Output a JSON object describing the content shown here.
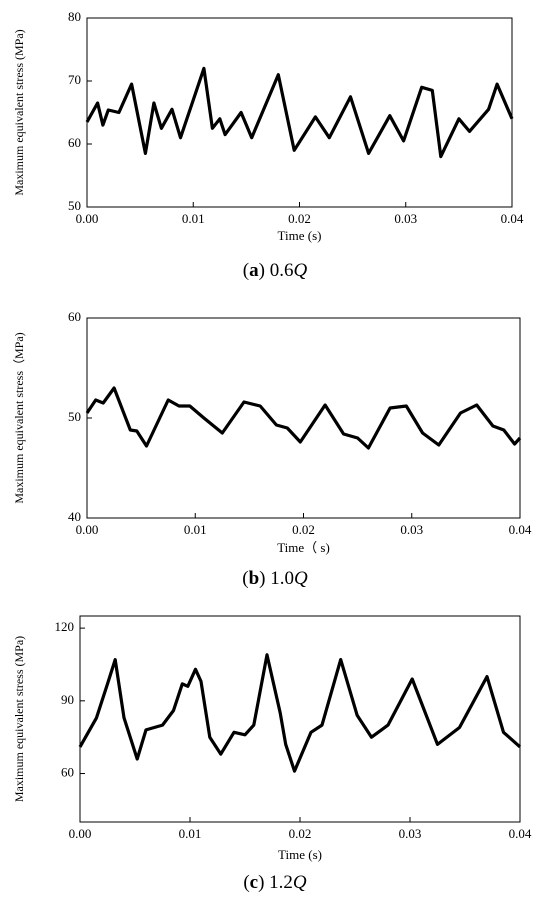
{
  "chart_data": [
    {
      "type": "line",
      "caption": [
        "(",
        "a",
        ") 0.6",
        "Q"
      ],
      "xlabel": "Time (s)",
      "ylabel": "Maximum equivalent stress (MPa)",
      "xlim": [
        0,
        0.04
      ],
      "xticks": [
        {
          "value": 0,
          "label": "0.00"
        },
        0.01,
        0.02,
        0.03,
        0.04
      ],
      "ylim": [
        50,
        80
      ],
      "yticks": [
        50,
        60,
        70,
        80
      ],
      "series": [
        {
          "color": "#000000",
          "x": [
            0,
            0.001,
            0.0015,
            0.002,
            0.003,
            0.0042,
            0.0055,
            0.0063,
            0.007,
            0.008,
            0.0088,
            0.01,
            0.011,
            0.0118,
            0.0125,
            0.013,
            0.0145,
            0.0155,
            0.018,
            0.0195,
            0.0215,
            0.0228,
            0.0248,
            0.0265,
            0.0285,
            0.0298,
            0.0315,
            0.0325,
            0.0333,
            0.035,
            0.036,
            0.0378,
            0.0386,
            0.04
          ],
          "values": [
            63.5,
            66.5,
            63,
            65.4,
            65,
            69.5,
            58.5,
            66.5,
            62.5,
            65.5,
            61,
            67,
            72,
            62.5,
            64,
            61.5,
            65,
            61,
            71,
            59,
            64.3,
            61,
            67.5,
            58.5,
            64.5,
            60.5,
            69,
            68.5,
            58,
            64,
            62,
            65.5,
            69.5,
            64
          ]
        }
      ]
    },
    {
      "type": "line",
      "caption": [
        "(",
        "b",
        ") 1.0",
        "Q"
      ],
      "xlabel": "Time（ s)",
      "ylabel": "Maximum equivalent stress（MPa)",
      "xlim": [
        0,
        0.04
      ],
      "xticks": [
        {
          "value": 0,
          "label": "0.00"
        },
        0.01,
        0.02,
        0.03,
        0.04
      ],
      "ylim": [
        40,
        60
      ],
      "yticks": [
        40,
        50,
        60
      ],
      "series": [
        {
          "color": "#000000",
          "x": [
            0,
            0.0008,
            0.0015,
            0.0025,
            0.004,
            0.0046,
            0.0055,
            0.0075,
            0.0085,
            0.0095,
            0.0108,
            0.0125,
            0.0145,
            0.016,
            0.0175,
            0.0185,
            0.0197,
            0.022,
            0.0237,
            0.025,
            0.026,
            0.028,
            0.0295,
            0.031,
            0.0325,
            0.0345,
            0.036,
            0.0375,
            0.0385,
            0.0395,
            0.04
          ],
          "values": [
            50.5,
            51.8,
            51.5,
            53,
            48.8,
            48.7,
            47.2,
            51.8,
            51.2,
            51.2,
            50,
            48.5,
            51.6,
            51.2,
            49.3,
            49,
            47.6,
            51.3,
            48.4,
            48,
            47,
            51,
            51.2,
            48.5,
            47.3,
            50.5,
            51.3,
            49.2,
            48.8,
            47.4,
            48
          ]
        }
      ]
    },
    {
      "type": "line",
      "caption": [
        "(",
        "c",
        ") 1.2",
        "Q"
      ],
      "xlabel": "Time (s)",
      "ylabel": "Maximum equivalent stress (MPa)",
      "xlim": [
        0,
        0.04
      ],
      "xticks": [
        {
          "value": 0,
          "label": "0.00"
        },
        0.01,
        0.02,
        0.03,
        0.04
      ],
      "ylim": [
        40,
        125
      ],
      "yticks": [
        60,
        90,
        120
      ],
      "series": [
        {
          "color": "#000000",
          "x": [
            0,
            0.0015,
            0.0025,
            0.0032,
            0.004,
            0.0052,
            0.006,
            0.0075,
            0.0085,
            0.0093,
            0.0098,
            0.0105,
            0.011,
            0.0118,
            0.0128,
            0.014,
            0.015,
            0.0158,
            0.017,
            0.0182,
            0.0187,
            0.0195,
            0.021,
            0.022,
            0.0237,
            0.0252,
            0.0265,
            0.028,
            0.0302,
            0.0325,
            0.0345,
            0.037,
            0.0385,
            0.04
          ],
          "values": [
            71,
            83,
            97,
            107,
            83,
            66,
            78,
            80,
            86,
            97,
            96,
            103,
            98,
            75,
            68,
            77,
            76,
            80,
            109,
            85,
            72,
            61,
            77,
            80,
            107,
            84,
            75,
            80,
            99,
            72,
            79,
            100,
            77,
            71
          ]
        }
      ]
    }
  ]
}
